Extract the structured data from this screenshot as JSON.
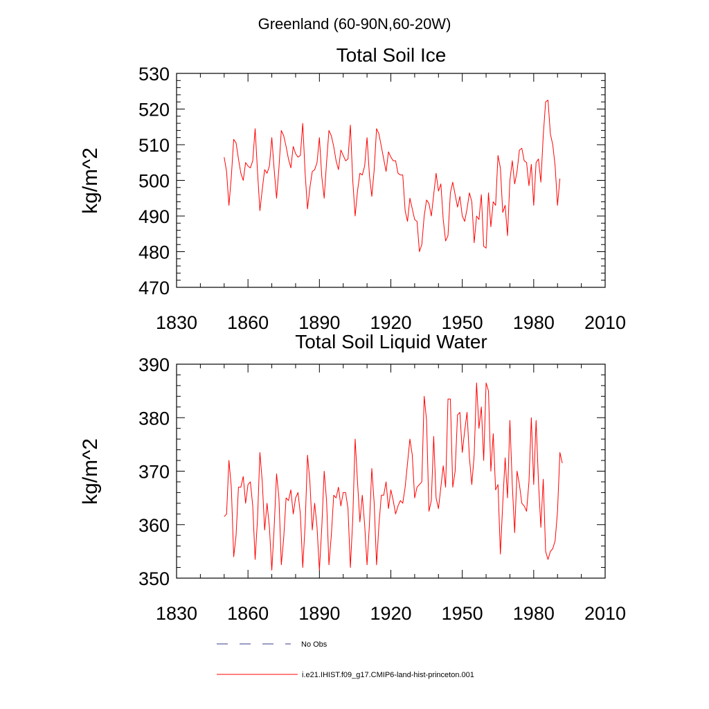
{
  "figure_title": "Greenland (60-90N,60-20W)",
  "legend": [
    {
      "label": "No Obs",
      "color": "#3a3a8c",
      "dash": true
    },
    {
      "label": "i.e21.IHIST.f09_g17.CMIP6-land-hist-princeton.001",
      "color": "#ff0000",
      "dash": false
    }
  ],
  "chart_data": [
    {
      "type": "line",
      "title": "Total Soil Ice",
      "ylabel": "kg/m^2",
      "xlabel": "",
      "xlim": [
        1830,
        2010
      ],
      "ylim": [
        470,
        530
      ],
      "xticks": [
        1830,
        1860,
        1890,
        1920,
        1950,
        1980,
        2010
      ],
      "yticks": [
        470,
        480,
        490,
        500,
        510,
        520,
        530
      ],
      "x_start": 1850,
      "series": [
        {
          "color": "#ff0000",
          "values": [
            506.5,
            502.5,
            493,
            501,
            511.5,
            510.5,
            506,
            502,
            500,
            505,
            504,
            503.5,
            505.5,
            514.5,
            502.5,
            491.5,
            497.5,
            503,
            502,
            504,
            512,
            503,
            495,
            503.5,
            514,
            512.5,
            509.5,
            506,
            503.5,
            509.5,
            507.5,
            506.5,
            507,
            516,
            502,
            492,
            498,
            502.5,
            503,
            505,
            512,
            501,
            495,
            505,
            514,
            512.5,
            509.5,
            505.5,
            503,
            508.5,
            507,
            505.5,
            506,
            515.5,
            500,
            490,
            497,
            502,
            501.5,
            504,
            512,
            501.5,
            495.5,
            503,
            514.5,
            513,
            509.5,
            506,
            502.5,
            508,
            506.5,
            505.5,
            505.5,
            502,
            501.5,
            501.5,
            491.5,
            488.5,
            495,
            492,
            489,
            488.5,
            480,
            482,
            490,
            494.5,
            493.5,
            490,
            496,
            502,
            497,
            499,
            489,
            483,
            484.5,
            496.5,
            499.5,
            496,
            492.5,
            495.5,
            490,
            488.5,
            492,
            496.5,
            494,
            482.5,
            490,
            489,
            496,
            481.5,
            481,
            496.5,
            487,
            494,
            493,
            507,
            503.5,
            491,
            493,
            484.5,
            500,
            505.5,
            499,
            502.5,
            508.5,
            509,
            505.5,
            505,
            498.5,
            504.5,
            493,
            505,
            506,
            499.5,
            512.5,
            522,
            522.5,
            513,
            510,
            504,
            493,
            500.5
          ]
        }
      ]
    },
    {
      "type": "line",
      "title": "Total Soil Liquid Water",
      "ylabel": "kg/m^2",
      "xlabel": "",
      "xlim": [
        1830,
        2010
      ],
      "ylim": [
        350,
        390
      ],
      "xticks": [
        1830,
        1860,
        1890,
        1920,
        1950,
        1980,
        2010
      ],
      "yticks": [
        350,
        360,
        370,
        380,
        390
      ],
      "x_start": 1850,
      "series": [
        {
          "color": "#ff0000",
          "values": [
            361.5,
            362,
            372,
            367,
            354,
            358,
            367,
            367,
            369,
            364,
            367.5,
            368,
            363.5,
            353.5,
            361,
            373.5,
            368,
            359,
            364,
            359.5,
            351.5,
            359.5,
            369.5,
            365,
            352.5,
            357.5,
            365,
            364.5,
            366.5,
            362,
            365,
            366,
            362,
            352,
            360,
            373,
            368,
            359,
            364,
            359.5,
            351.5,
            359.5,
            370,
            364.5,
            352.5,
            358,
            365.5,
            365,
            367,
            363.5,
            366,
            366,
            363,
            352,
            361,
            376,
            368,
            360.5,
            365.5,
            360,
            352.5,
            360,
            370.5,
            364,
            352.5,
            360,
            365.5,
            365.5,
            368,
            363,
            366.5,
            364.5,
            362,
            363.5,
            364.5,
            364,
            367,
            371.5,
            376,
            373,
            365,
            367,
            367.5,
            368,
            384,
            379.5,
            362.5,
            364.5,
            376.5,
            365,
            363,
            367,
            371,
            367,
            383.5,
            383.5,
            367,
            370,
            380.5,
            381,
            373.5,
            377.5,
            381,
            372.5,
            367.5,
            373,
            386.5,
            378,
            382,
            372,
            386.5,
            385,
            370,
            377,
            366.5,
            367.5,
            354.5,
            364,
            372.5,
            365,
            379.5,
            367.5,
            358.5,
            370,
            367.5,
            364,
            363.5,
            362.5,
            368,
            380,
            367.5,
            379.5,
            368,
            359.5,
            368.5,
            355,
            353.5,
            355,
            355.5,
            357,
            362.5,
            373.5,
            371.5
          ]
        }
      ]
    }
  ]
}
